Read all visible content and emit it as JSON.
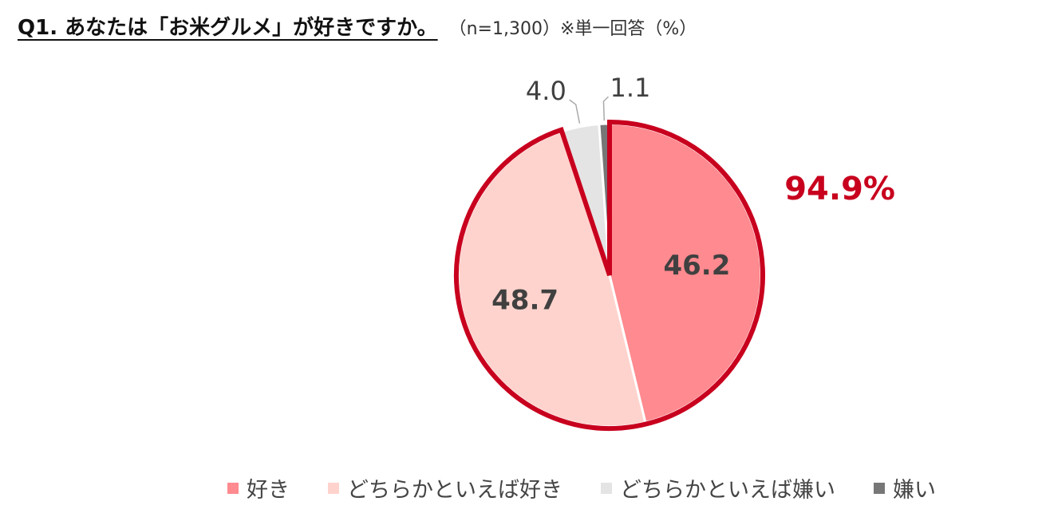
{
  "title": "Q1. あなたは「お米グルメ」が好きですか。",
  "meta": "（n=1,300）※単一回答（%）",
  "chart_data": {
    "type": "pie",
    "unit": "%",
    "slices": [
      {
        "label": "好き",
        "value": 46.2,
        "color": "#ff8a8f",
        "display": "46.2"
      },
      {
        "label": "どちらかといえば好き",
        "value": 48.7,
        "color": "#ffd3cd",
        "display": "48.7"
      },
      {
        "label": "どちらかといえば嫌い",
        "value": 4.0,
        "color": "#e4e4e4",
        "display": "4.0"
      },
      {
        "label": "嫌い",
        "value": 1.1,
        "color": "#777777",
        "display": "1.1"
      }
    ],
    "highlight": {
      "label": "94.9%",
      "color": "#c8001e",
      "groups": [
        "好き",
        "どちらかといえば好き"
      ]
    }
  }
}
